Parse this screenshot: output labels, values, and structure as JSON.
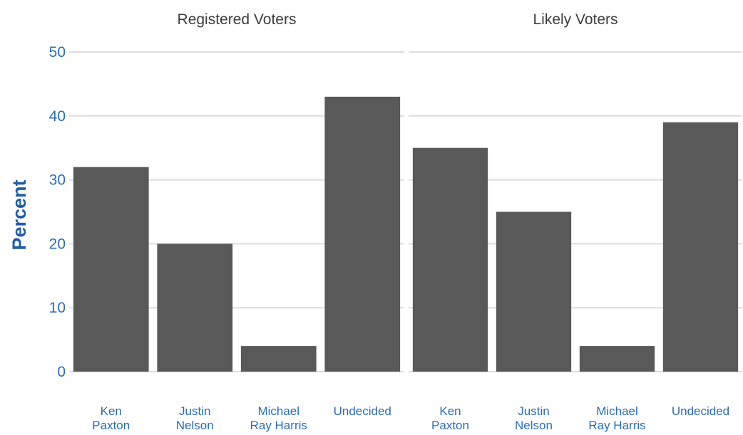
{
  "chart_data": {
    "type": "bar",
    "ylabel": "Percent",
    "ylim": [
      0,
      50
    ],
    "yticks": [
      "0",
      "10",
      "20",
      "30",
      "40",
      "50"
    ],
    "grid": true,
    "bar_color": "#595959",
    "axis_text_color": "#2b6cb0",
    "categories": [
      "Ken Paxton",
      "Justin Nelson",
      "Michael Ray Harris",
      "Undecided"
    ],
    "category_lines": [
      [
        "Ken",
        "Paxton"
      ],
      [
        "Justin",
        "Nelson"
      ],
      [
        "Michael",
        "Ray Harris"
      ],
      [
        "Undecided",
        ""
      ]
    ],
    "panels": [
      {
        "title": "Registered Voters",
        "values": [
          32,
          20,
          4,
          43
        ]
      },
      {
        "title": "Likely Voters",
        "values": [
          35,
          25,
          4,
          39
        ]
      }
    ]
  }
}
